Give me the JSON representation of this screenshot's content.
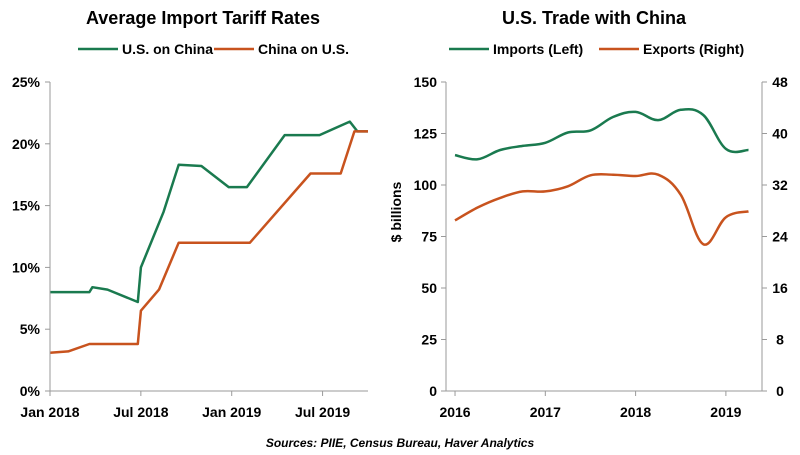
{
  "source_note": "Sources: PIIE, Census Bureau, Haver Analytics",
  "colors": {
    "green": "#1a7a4f",
    "orange": "#c8531e",
    "axis": "#9a9a9a"
  },
  "chart_data": [
    {
      "type": "line",
      "title": "Average Import Tariff Rates",
      "xlabel": "",
      "ylabel": "",
      "x_ticks": [
        {
          "value": 0,
          "label": "Jan 2018"
        },
        {
          "value": 6,
          "label": "Jul 2018"
        },
        {
          "value": 12,
          "label": "Jan 2019"
        },
        {
          "value": 18,
          "label": "Jul 2019"
        }
      ],
      "xlim": [
        0,
        21
      ],
      "ylim": [
        0,
        25
      ],
      "y_ticks": [
        {
          "value": 0,
          "label": "0%"
        },
        {
          "value": 5,
          "label": "5%"
        },
        {
          "value": 10,
          "label": "10%"
        },
        {
          "value": 15,
          "label": "15%"
        },
        {
          "value": 20,
          "label": "20%"
        },
        {
          "value": 25,
          "label": "25%"
        }
      ],
      "legend_position": "top",
      "series": [
        {
          "name": "U.S. on China",
          "color": "#1a7a4f",
          "points": [
            [
              0,
              8.0
            ],
            [
              2.6,
              8.0
            ],
            [
              2.8,
              8.4
            ],
            [
              3.8,
              8.2
            ],
            [
              5.8,
              7.2
            ],
            [
              6.0,
              10.0
            ],
            [
              7.5,
              14.5
            ],
            [
              8.5,
              18.3
            ],
            [
              10.0,
              18.2
            ],
            [
              11.8,
              16.5
            ],
            [
              13.0,
              16.5
            ],
            [
              15.5,
              20.7
            ],
            [
              17.8,
              20.7
            ],
            [
              19.8,
              21.8
            ],
            [
              20.3,
              21.0
            ],
            [
              21,
              21.0
            ]
          ]
        },
        {
          "name": "China on U.S.",
          "color": "#c8531e",
          "points": [
            [
              0,
              3.1
            ],
            [
              1.2,
              3.2
            ],
            [
              2.6,
              3.8
            ],
            [
              5.8,
              3.8
            ],
            [
              6.0,
              6.5
            ],
            [
              7.2,
              8.2
            ],
            [
              8.5,
              12.0
            ],
            [
              13.2,
              12.0
            ],
            [
              17.2,
              17.6
            ],
            [
              19.2,
              17.6
            ],
            [
              20.1,
              21.0
            ],
            [
              21,
              21.0
            ]
          ]
        }
      ]
    },
    {
      "type": "line",
      "title": "U.S. Trade with China",
      "xlabel": "",
      "ylabel": "$ billions",
      "y2label": "",
      "xlim": [
        2015.9,
        2019.4
      ],
      "x_ticks": [
        {
          "value": 2016,
          "label": "2016"
        },
        {
          "value": 2017,
          "label": "2017"
        },
        {
          "value": 2018,
          "label": "2018"
        },
        {
          "value": 2019,
          "label": "2019"
        }
      ],
      "ylim": [
        0,
        150
      ],
      "y_ticks": [
        {
          "value": 0,
          "label": "0"
        },
        {
          "value": 25,
          "label": "25"
        },
        {
          "value": 50,
          "label": "50"
        },
        {
          "value": 75,
          "label": "75"
        },
        {
          "value": 100,
          "label": "100"
        },
        {
          "value": 125,
          "label": "125"
        },
        {
          "value": 150,
          "label": "150"
        }
      ],
      "y2lim": [
        0,
        48
      ],
      "y2_ticks": [
        {
          "value": 0,
          "label": "0"
        },
        {
          "value": 8,
          "label": "8"
        },
        {
          "value": 16,
          "label": "16"
        },
        {
          "value": 24,
          "label": "24"
        },
        {
          "value": 32,
          "label": "32"
        },
        {
          "value": 40,
          "label": "40"
        },
        {
          "value": 48,
          "label": "48"
        }
      ],
      "legend_position": "top",
      "series": [
        {
          "name": "Imports (Left)",
          "axis": "left",
          "color": "#1a7a4f",
          "points": [
            [
              2016.0,
              114.5
            ],
            [
              2016.25,
              112.5
            ],
            [
              2016.5,
              117.0
            ],
            [
              2016.75,
              119.0
            ],
            [
              2017.0,
              120.5
            ],
            [
              2017.25,
              125.5
            ],
            [
              2017.5,
              126.5
            ],
            [
              2017.75,
              133.0
            ],
            [
              2018.0,
              135.5
            ],
            [
              2018.25,
              131.5
            ],
            [
              2018.5,
              136.5
            ],
            [
              2018.75,
              134.0
            ],
            [
              2019.0,
              117.5
            ],
            [
              2019.25,
              117.0
            ]
          ]
        },
        {
          "name": "Exports (Right)",
          "axis": "right",
          "color": "#c8531e",
          "points": [
            [
              2016.0,
              26.5
            ],
            [
              2016.25,
              28.5
            ],
            [
              2016.5,
              30.0
            ],
            [
              2016.75,
              31.0
            ],
            [
              2017.0,
              31.0
            ],
            [
              2017.25,
              31.8
            ],
            [
              2017.5,
              33.5
            ],
            [
              2017.75,
              33.6
            ],
            [
              2018.0,
              33.4
            ],
            [
              2018.25,
              33.6
            ],
            [
              2018.5,
              30.5
            ],
            [
              2018.75,
              22.8
            ],
            [
              2019.0,
              27.0
            ],
            [
              2019.25,
              27.9
            ]
          ]
        }
      ]
    }
  ]
}
